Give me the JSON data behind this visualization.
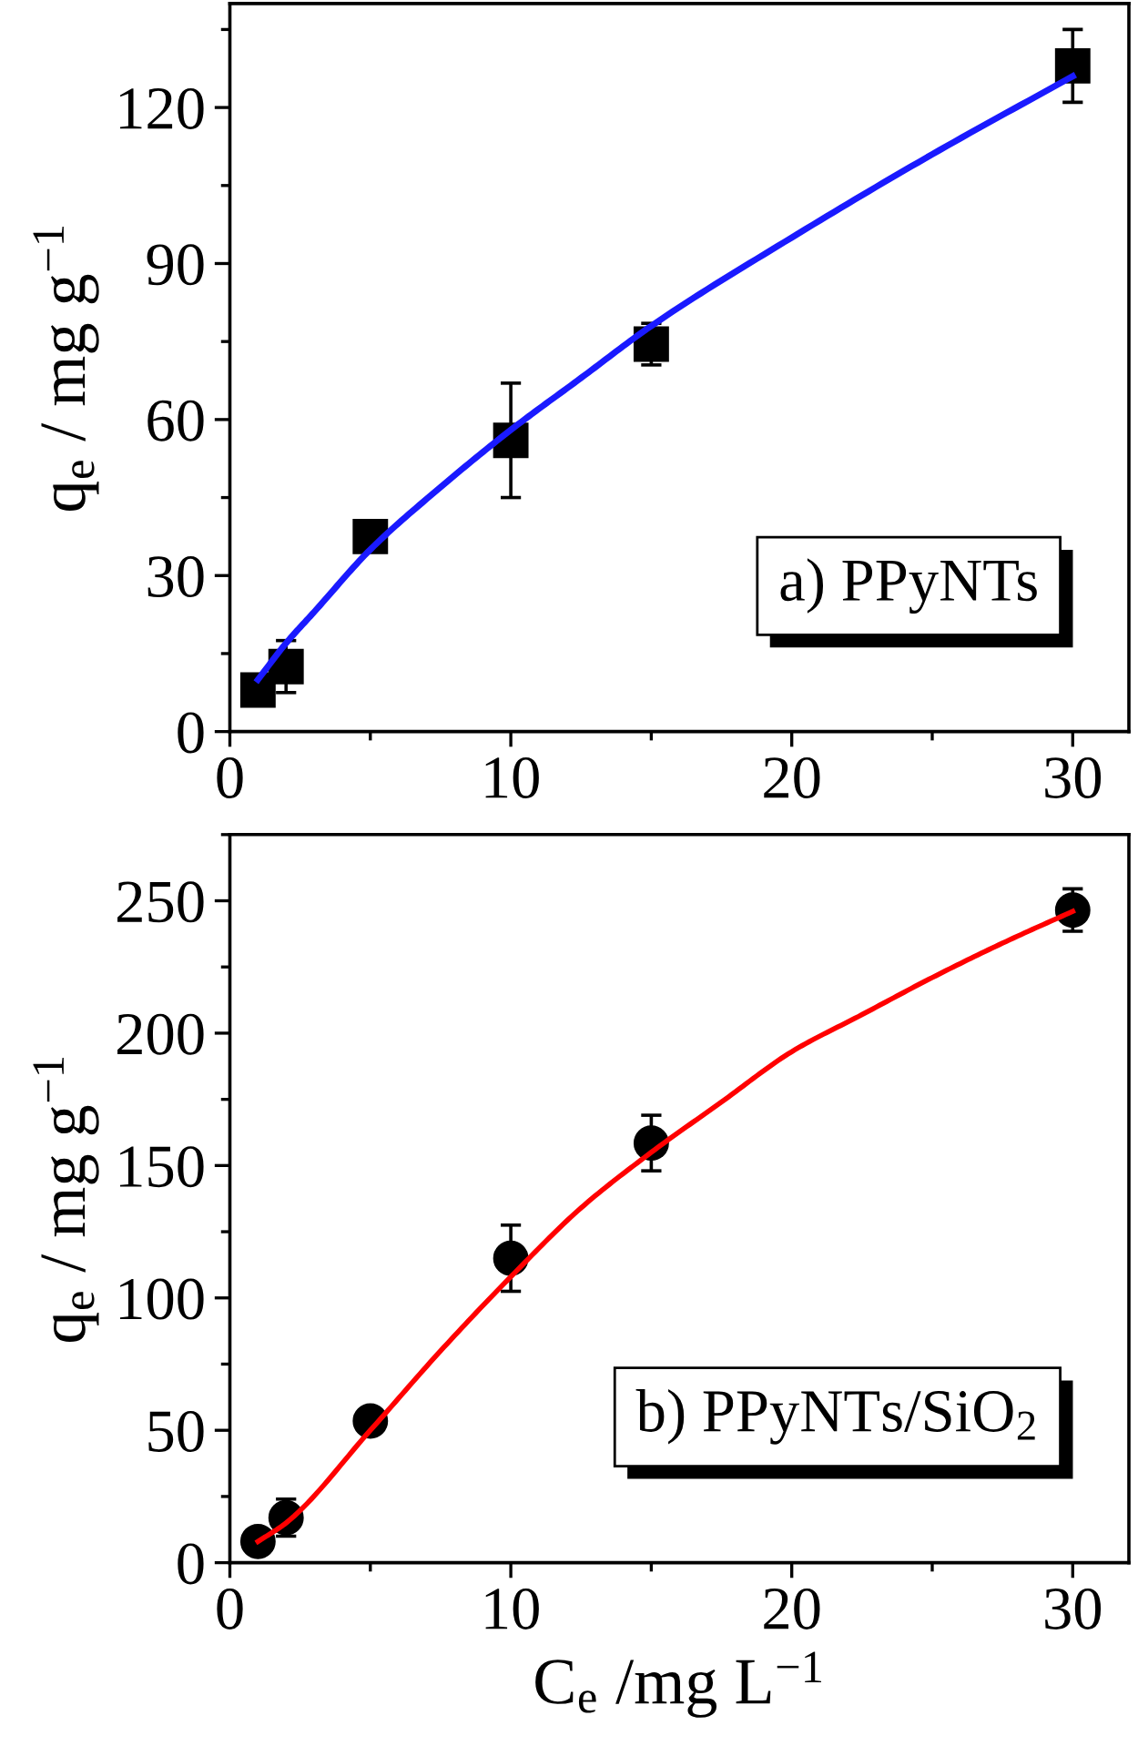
{
  "chart_data": [
    {
      "type": "scatter",
      "ylabel": "q$_{e}$ / mg g$^{−1}$",
      "xlim": [
        0,
        32
      ],
      "xticks": [
        0,
        10,
        20,
        30
      ],
      "ylim": [
        0,
        140
      ],
      "yticks": [
        0,
        30,
        60,
        90,
        120
      ],
      "annotations": [
        "a) PPyNTs"
      ],
      "series": [
        {
          "marker": "square",
          "color": "#000000",
          "x": [
            1,
            2,
            5,
            10,
            15,
            30
          ],
          "values": [
            8,
            12.5,
            37.5,
            56,
            74.5,
            128
          ],
          "errors": [
            null,
            5,
            null,
            11,
            4,
            7
          ]
        },
        {
          "type": "line",
          "marker": "none",
          "color": "#1a1aff",
          "x": [
            1,
            2,
            3,
            5,
            7.5,
            10,
            12.5,
            15,
            20,
            25,
            30
          ],
          "values": [
            10,
            17,
            23,
            35,
            47,
            58,
            68,
            78,
            95,
            111,
            126
          ]
        }
      ]
    },
    {
      "type": "scatter",
      "xlabel": "C$_{e}$ /mg L$^{−1}$",
      "ylabel": "q$_{e}$ / mg g$^{−1}$",
      "xlim": [
        0,
        32
      ],
      "xticks": [
        0,
        10,
        20,
        30
      ],
      "ylim": [
        0,
        275
      ],
      "yticks": [
        0,
        50,
        100,
        150,
        200,
        250
      ],
      "annotations": [
        "b) PPyNTs/SiO$_{2}$"
      ],
      "series": [
        {
          "marker": "circle",
          "color": "#000000",
          "x": [
            1,
            2,
            5,
            10,
            15,
            30
          ],
          "values": [
            8,
            17,
            53.5,
            115,
            158.5,
            246.5
          ],
          "errors": [
            null,
            7,
            null,
            12.5,
            10.5,
            8
          ]
        },
        {
          "type": "line",
          "marker": "none",
          "color": "#ff0000",
          "x": [
            1,
            2,
            5,
            7.5,
            10,
            12.5,
            15,
            17.5,
            20,
            22.5,
            25,
            27.5,
            30
          ],
          "values": [
            8,
            15,
            50,
            80,
            108,
            134,
            155,
            174,
            193,
            207,
            221,
            234,
            246
          ]
        }
      ]
    }
  ]
}
